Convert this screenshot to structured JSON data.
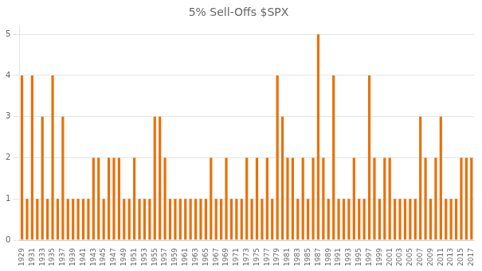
{
  "chart_data": {
    "type": "bar",
    "title": "5% Sell-Offs $SPX",
    "categories": [
      "1929",
      null,
      "1931",
      null,
      "1933",
      null,
      "1935",
      null,
      "1937",
      null,
      "1939",
      null,
      "1941",
      null,
      "1943",
      null,
      "1945",
      null,
      "1947",
      null,
      "1949",
      null,
      "1951",
      null,
      "1953",
      null,
      "1955",
      null,
      "1957",
      null,
      "1959",
      null,
      "1961",
      null,
      "1963",
      null,
      "1965",
      null,
      "1967",
      null,
      "1969",
      null,
      "1971",
      null,
      "1973",
      null,
      "1975",
      null,
      "1977",
      null,
      "1979",
      null,
      "1981",
      null,
      "1983",
      null,
      "1985",
      null,
      "1987",
      null,
      "1989",
      null,
      "1991",
      null,
      "1993",
      null,
      "1995",
      null,
      "1997",
      null,
      "1999",
      null,
      "2001",
      null,
      "2003",
      null,
      "2005",
      null,
      "2007",
      null,
      "2009",
      null,
      "2011",
      null,
      "2013",
      null,
      "2015",
      null,
      "2017"
    ],
    "values": [
      4,
      1,
      4,
      1,
      3,
      1,
      4,
      1,
      3,
      1,
      1,
      1,
      1,
      1,
      2,
      2,
      1,
      2,
      2,
      2,
      1,
      1,
      2,
      1,
      1,
      1,
      3,
      3,
      2,
      1,
      1,
      1,
      1,
      1,
      1,
      1,
      1,
      2,
      1,
      1,
      2,
      1,
      1,
      1,
      2,
      1,
      2,
      1,
      2,
      1,
      4,
      3,
      2,
      2,
      1,
      2,
      1,
      2,
      5,
      2,
      1,
      4,
      1,
      1,
      1,
      2,
      1,
      1,
      4,
      2,
      1,
      2,
      2,
      1,
      1,
      1,
      1,
      1,
      3,
      2,
      1,
      2,
      3,
      1,
      1,
      1,
      2,
      2,
      2
    ],
    "color": "#E8710A",
    "ylim": [
      0,
      5.2
    ],
    "yticks": [
      0,
      1,
      2,
      3,
      4,
      5
    ],
    "grid": true
  }
}
